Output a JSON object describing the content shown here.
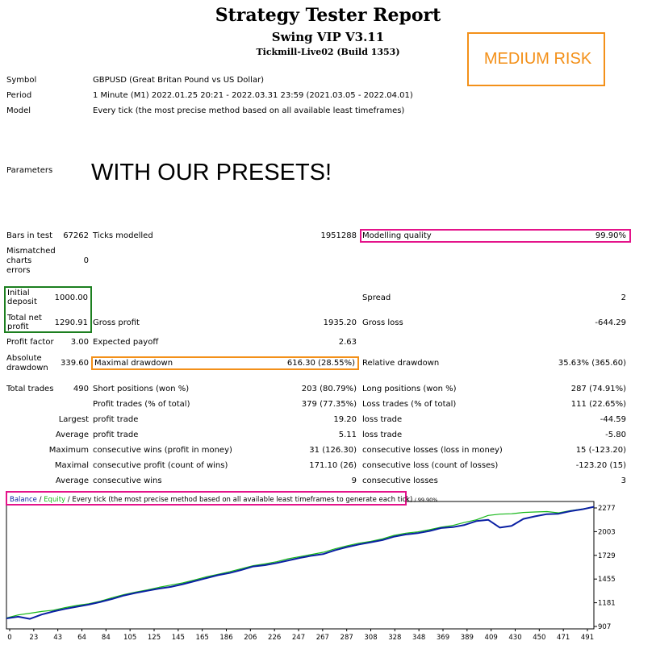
{
  "header": {
    "title": "Strategy Tester Report",
    "expert": "Swing VIP V3.11",
    "server": "Tickmill-Live02 (Build 1353)",
    "risk_label": "MEDIUM RISK"
  },
  "info": {
    "symbol_label": "Symbol",
    "symbol_value": "GBPUSD (Great Britan Pound vs US Dollar)",
    "period_label": "Period",
    "period_value": "1 Minute (M1) 2022.01.25 20:21 - 2022.03.31 23:59 (2021.03.05 - 2022.04.01)",
    "model_label": "Model",
    "model_value": "Every tick (the most precise method based on all available least timeframes)",
    "parameters_label": "Parameters",
    "presets_text": "WITH OUR PRESETS!"
  },
  "stats": {
    "bars_label": "Bars in test",
    "bars_value": "67262",
    "ticks_label": "Ticks modelled",
    "ticks_value": "1951288",
    "quality_label": "Modelling quality",
    "quality_value": "99.90%",
    "mismatch_label_1": "Mismatched",
    "mismatch_label_2": "charts",
    "mismatch_label_3": "errors",
    "mismatch_value": "0",
    "initial_label_1": "Initial",
    "initial_label_2": "deposit",
    "initial_value": "1000.00",
    "spread_label": "Spread",
    "spread_value": "2",
    "net_label_1": "Total net",
    "net_label_2": "profit",
    "net_value": "1290.91",
    "gross_profit_label": "Gross profit",
    "gross_profit_value": "1935.20",
    "gross_loss_label": "Gross loss",
    "gross_loss_value": "-644.29",
    "pf_label": "Profit factor",
    "pf_value": "3.00",
    "ep_label": "Expected payoff",
    "ep_value": "2.63",
    "abs_label_1": "Absolute",
    "abs_label_2": "drawdown",
    "abs_value": "339.60",
    "maxdd_label": "Maximal drawdown",
    "maxdd_value": "616.30 (28.55%)",
    "reldd_label": "Relative drawdown",
    "reldd_value": "35.63% (365.60)",
    "trades_label": "Total trades",
    "trades_value": "490",
    "short_label": "Short positions (won %)",
    "short_value": "203 (80.79%)",
    "long_label": "Long positions (won %)",
    "long_value": "287 (74.91%)",
    "ptrades_label": "Profit trades (% of total)",
    "ptrades_value": "379 (77.35%)",
    "ltrades_label": "Loss trades (% of total)",
    "ltrades_value": "111 (22.65%)",
    "largest_label": "Largest",
    "largest_profit_label": "profit trade",
    "largest_profit_value": "19.20",
    "largest_loss_label": "loss trade",
    "largest_loss_value": "-44.59",
    "average_label": "Average",
    "average_profit_label": "profit trade",
    "average_profit_value": "5.11",
    "average_loss_label": "loss trade",
    "average_loss_value": "-5.80",
    "maximum_label": "Maximum",
    "max_wins_label": "consecutive wins (profit in money)",
    "max_wins_value": "31 (126.30)",
    "max_losses_label": "consecutive losses (loss in money)",
    "max_losses_value": "15 (-123.20)",
    "maximal_label": "Maximal",
    "maximal_profit_label": "consecutive profit (count of wins)",
    "maximal_profit_value": "171.10 (26)",
    "maximal_loss_label": "consecutive loss (count of losses)",
    "maximal_loss_value": "-123.20 (15)",
    "average2_label": "Average",
    "avg_wins_label": "consecutive wins",
    "avg_wins_value": "9",
    "avg_losses_label": "consecutive losses",
    "avg_losses_value": "3"
  },
  "chart_legend": {
    "balance": "Balance",
    "sep1": " / ",
    "equity": "Equity",
    "rest": " / Every tick (the most precise method based on all available least timeframes to generate each tick)",
    "quality": " / 99.90%"
  },
  "colors": {
    "balance": "#0a1fa3",
    "equity": "#17b81a",
    "highlight_pink": "#e4138a",
    "highlight_green": "#1c7f1f",
    "highlight_orange": "#f39019"
  },
  "chart_data": {
    "type": "line",
    "x_ticks": [
      "0",
      "23",
      "43",
      "64",
      "84",
      "105",
      "125",
      "145",
      "165",
      "186",
      "206",
      "226",
      "247",
      "267",
      "287",
      "308",
      "328",
      "348",
      "369",
      "389",
      "409",
      "430",
      "450",
      "471",
      "491"
    ],
    "y_ticks": [
      "2277",
      "2003",
      "1729",
      "1455",
      "1181",
      "907"
    ],
    "ylim": [
      907,
      2277
    ],
    "xlim": [
      0,
      500
    ],
    "series": [
      {
        "name": "Balance",
        "x": [
          0,
          10,
          20,
          30,
          40,
          50,
          60,
          70,
          80,
          90,
          100,
          110,
          120,
          130,
          140,
          150,
          160,
          170,
          180,
          190,
          200,
          210,
          220,
          230,
          240,
          250,
          260,
          270,
          280,
          290,
          300,
          310,
          320,
          330,
          340,
          350,
          360,
          370,
          380,
          390,
          400,
          410,
          420,
          430,
          440,
          450,
          460,
          470,
          480,
          490,
          500
        ],
        "y": [
          1000,
          1020,
          995,
          1045,
          1080,
          1110,
          1135,
          1160,
          1190,
          1225,
          1265,
          1295,
          1320,
          1345,
          1365,
          1395,
          1430,
          1465,
          1500,
          1525,
          1560,
          1600,
          1615,
          1640,
          1670,
          1700,
          1725,
          1745,
          1790,
          1825,
          1855,
          1880,
          1905,
          1945,
          1970,
          1985,
          2010,
          2045,
          2055,
          2080,
          2125,
          2140,
          2050,
          2070,
          2150,
          2180,
          2205,
          2210,
          2240,
          2260,
          2290
        ]
      },
      {
        "name": "Equity",
        "x": [
          0,
          10,
          20,
          30,
          40,
          50,
          60,
          70,
          80,
          90,
          100,
          110,
          120,
          130,
          140,
          150,
          160,
          170,
          180,
          190,
          200,
          210,
          220,
          230,
          240,
          250,
          260,
          270,
          280,
          290,
          300,
          310,
          320,
          330,
          340,
          350,
          360,
          370,
          380,
          390,
          400,
          410,
          420,
          430,
          440,
          450,
          460,
          470,
          480,
          490,
          500
        ],
        "y": [
          1005,
          1040,
          1060,
          1080,
          1095,
          1125,
          1150,
          1170,
          1200,
          1240,
          1275,
          1305,
          1330,
          1360,
          1385,
          1410,
          1445,
          1480,
          1510,
          1540,
          1575,
          1610,
          1630,
          1655,
          1690,
          1715,
          1740,
          1765,
          1805,
          1840,
          1870,
          1890,
          1920,
          1960,
          1985,
          2000,
          2025,
          2055,
          2075,
          2110,
          2140,
          2190,
          2205,
          2210,
          2225,
          2230,
          2235,
          2220,
          2245,
          2265,
          2290
        ]
      }
    ]
  }
}
